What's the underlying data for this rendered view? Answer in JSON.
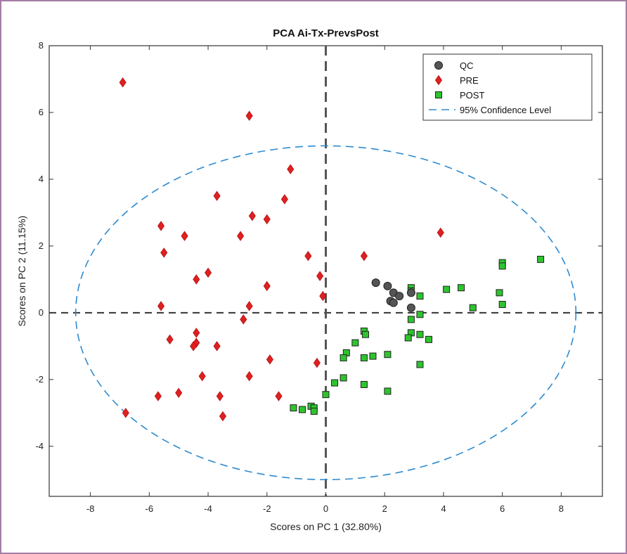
{
  "chart_data": {
    "type": "scatter",
    "title": "PCA Ai-Tx-PrevsPost",
    "xlabel": "Scores on PC 1 (32.80%)",
    "ylabel": "Scores on PC 2 (11.15%)",
    "xlim": [
      -9.4,
      9.4
    ],
    "ylim": [
      -5.5,
      8
    ],
    "xticks": [
      -8,
      -6,
      -4,
      -2,
      0,
      2,
      4,
      6,
      8
    ],
    "yticks": [
      -4,
      -2,
      0,
      2,
      4,
      6,
      8
    ],
    "grid": false,
    "legend_position": "top-right",
    "reference_lines": {
      "x": 0,
      "y": 0,
      "style": "dashed",
      "color": "#333333"
    },
    "confidence_ellipse": {
      "label": "95% Confidence Level",
      "center": [
        0,
        0
      ],
      "semi_axis_x": 8.5,
      "semi_axis_y": 5,
      "color": "#2e8bd0"
    },
    "series": [
      {
        "name": "QC",
        "marker": "circle",
        "color": "#555555",
        "points": [
          [
            1.7,
            0.9
          ],
          [
            2.1,
            0.8
          ],
          [
            2.3,
            0.6
          ],
          [
            2.5,
            0.5
          ],
          [
            2.2,
            0.35
          ],
          [
            2.3,
            0.3
          ],
          [
            2.9,
            0.6
          ],
          [
            2.9,
            0.15
          ]
        ]
      },
      {
        "name": "PRE",
        "marker": "diamond",
        "color": "#e02020",
        "points": [
          [
            -6.9,
            6.9
          ],
          [
            -2.6,
            5.9
          ],
          [
            -1.2,
            4.3
          ],
          [
            -3.7,
            3.5
          ],
          [
            -1.4,
            3.4
          ],
          [
            -2.5,
            2.9
          ],
          [
            -2.0,
            2.8
          ],
          [
            -5.6,
            2.6
          ],
          [
            -4.8,
            2.3
          ],
          [
            -2.9,
            2.3
          ],
          [
            -5.5,
            1.8
          ],
          [
            -0.6,
            1.7
          ],
          [
            1.3,
            1.7
          ],
          [
            3.9,
            2.4
          ],
          [
            -4.0,
            1.2
          ],
          [
            -4.4,
            1.0
          ],
          [
            -0.2,
            1.1
          ],
          [
            -2.0,
            0.8
          ],
          [
            -0.1,
            0.5
          ],
          [
            -5.6,
            0.2
          ],
          [
            -2.6,
            0.2
          ],
          [
            -2.8,
            -0.2
          ],
          [
            -4.4,
            -0.6
          ],
          [
            -4.4,
            -0.9
          ],
          [
            -4.5,
            -1.0
          ],
          [
            -3.7,
            -1.0
          ],
          [
            -5.3,
            -0.8
          ],
          [
            -1.9,
            -1.4
          ],
          [
            -0.3,
            -1.5
          ],
          [
            -4.2,
            -1.9
          ],
          [
            -2.6,
            -1.9
          ],
          [
            -5.0,
            -2.4
          ],
          [
            -5.7,
            -2.5
          ],
          [
            -3.6,
            -2.5
          ],
          [
            -1.6,
            -2.5
          ],
          [
            -6.8,
            -3.0
          ],
          [
            -3.5,
            -3.1
          ]
        ]
      },
      {
        "name": "POST",
        "marker": "square",
        "color": "#2ec42e",
        "points": [
          [
            7.3,
            1.6
          ],
          [
            6.0,
            1.5
          ],
          [
            6.0,
            1.4
          ],
          [
            5.9,
            0.6
          ],
          [
            6.0,
            0.25
          ],
          [
            4.1,
            0.7
          ],
          [
            4.6,
            0.75
          ],
          [
            5.0,
            0.15
          ],
          [
            2.9,
            0.75
          ],
          [
            2.9,
            0.65
          ],
          [
            3.2,
            0.5
          ],
          [
            3.2,
            -0.05
          ],
          [
            2.9,
            -0.2
          ],
          [
            2.9,
            -0.6
          ],
          [
            3.2,
            -0.65
          ],
          [
            2.8,
            -0.75
          ],
          [
            3.5,
            -0.8
          ],
          [
            1.3,
            -0.55
          ],
          [
            1.35,
            -0.65
          ],
          [
            1.0,
            -0.9
          ],
          [
            0.7,
            -1.2
          ],
          [
            1.3,
            -1.35
          ],
          [
            1.6,
            -1.3
          ],
          [
            2.1,
            -1.25
          ],
          [
            3.2,
            -1.55
          ],
          [
            0.6,
            -1.35
          ],
          [
            0.6,
            -1.95
          ],
          [
            0.3,
            -2.1
          ],
          [
            1.3,
            -2.15
          ],
          [
            2.1,
            -2.35
          ],
          [
            0.0,
            -2.45
          ],
          [
            -0.5,
            -2.8
          ],
          [
            -0.4,
            -2.85
          ],
          [
            -0.4,
            -2.95
          ],
          [
            -1.1,
            -2.85
          ],
          [
            -0.8,
            -2.9
          ]
        ]
      }
    ]
  }
}
